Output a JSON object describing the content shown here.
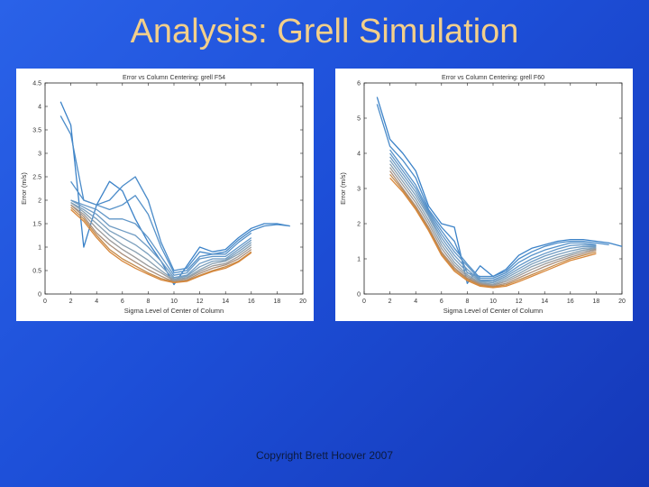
{
  "slide": {
    "title": "Analysis: Grell Simulation",
    "footer": "Copyright Brett Hoover 2007"
  },
  "chart_data": [
    {
      "type": "line",
      "title": "Error vs Column Centering: grell F54",
      "xlabel": "Sigma Level of Center of Column",
      "ylabel": "Error (m/s)",
      "xlim": [
        0,
        20
      ],
      "ylim": [
        0,
        4.5
      ],
      "xticks": [
        0,
        2,
        4,
        6,
        8,
        10,
        12,
        14,
        16,
        18,
        20
      ],
      "yticks": [
        0,
        0.5,
        1,
        1.5,
        2,
        2.5,
        3,
        3.5,
        4,
        4.5
      ],
      "grid": false,
      "series": [
        {
          "color": "#3b82c8",
          "x": [
            1.2,
            2.0,
            3.0,
            4.0,
            5.0,
            6.0,
            7.0,
            8.0,
            9.0,
            10.0,
            11.0,
            12.0,
            13.0,
            14.0,
            15.0,
            16.0,
            17.0,
            18.0,
            19.0
          ],
          "y": [
            4.1,
            3.6,
            1.0,
            1.9,
            2.4,
            2.2,
            1.6,
            1.1,
            0.7,
            0.2,
            0.6,
            1.0,
            0.9,
            0.95,
            1.2,
            1.4,
            1.5,
            1.5,
            1.45
          ]
        },
        {
          "color": "#4a8bc9",
          "x": [
            1.2,
            2.0,
            3.0,
            4.0,
            5.0,
            6.0,
            7.0,
            8.0,
            9.0,
            10.0,
            11.0,
            12.0,
            13.0,
            14.0,
            15.0,
            16.0,
            17.0,
            18.0,
            19.0
          ],
          "y": [
            3.8,
            3.4,
            2.0,
            1.9,
            2.0,
            2.3,
            2.5,
            2.0,
            1.1,
            0.5,
            0.55,
            0.9,
            0.85,
            0.9,
            1.15,
            1.35,
            1.45,
            1.48,
            1.45
          ]
        },
        {
          "color": "#5591c9",
          "x": [
            2.0,
            3.0,
            4.0,
            5.0,
            6.0,
            7.0,
            8.0,
            9.0,
            10.0,
            11.0,
            12.0,
            13.0,
            14.0,
            15.0,
            16.0
          ],
          "y": [
            2.4,
            2.0,
            1.9,
            1.8,
            1.9,
            2.1,
            1.7,
            1.0,
            0.45,
            0.5,
            0.8,
            0.85,
            0.85,
            1.1,
            1.3
          ]
        },
        {
          "color": "#6297c8",
          "x": [
            2.0,
            3.0,
            4.0,
            5.0,
            6.0,
            7.0,
            8.0,
            9.0,
            10.0,
            11.0,
            12.0,
            13.0,
            14.0,
            15.0,
            16.0
          ],
          "y": [
            2.0,
            1.9,
            1.8,
            1.6,
            1.6,
            1.5,
            1.2,
            0.8,
            0.4,
            0.45,
            0.75,
            0.8,
            0.8,
            1.0,
            1.2
          ]
        },
        {
          "color": "#6e9bc3",
          "x": [
            2.0,
            3.0,
            4.0,
            5.0,
            6.0,
            7.0,
            8.0,
            9.0,
            10.0,
            11.0,
            12.0,
            13.0,
            14.0,
            15.0,
            16.0
          ],
          "y": [
            2.0,
            1.85,
            1.7,
            1.45,
            1.35,
            1.25,
            1.0,
            0.7,
            0.35,
            0.4,
            0.65,
            0.75,
            0.75,
            0.95,
            1.15
          ]
        },
        {
          "color": "#7b9fbd",
          "x": [
            2.0,
            3.0,
            4.0,
            5.0,
            6.0,
            7.0,
            8.0,
            9.0,
            10.0,
            11.0,
            12.0,
            13.0,
            14.0,
            15.0,
            16.0
          ],
          "y": [
            1.95,
            1.8,
            1.6,
            1.35,
            1.2,
            1.05,
            0.85,
            0.6,
            0.32,
            0.38,
            0.58,
            0.7,
            0.72,
            0.9,
            1.1
          ]
        },
        {
          "color": "#889fb0",
          "x": [
            2.0,
            3.0,
            4.0,
            5.0,
            6.0,
            7.0,
            8.0,
            9.0,
            10.0,
            11.0,
            12.0,
            13.0,
            14.0,
            15.0,
            16.0
          ],
          "y": [
            1.95,
            1.75,
            1.5,
            1.25,
            1.05,
            0.9,
            0.72,
            0.5,
            0.3,
            0.35,
            0.52,
            0.65,
            0.7,
            0.85,
            1.05
          ]
        },
        {
          "color": "#9a9a9a",
          "x": [
            2.0,
            3.0,
            4.0,
            5.0,
            6.0,
            7.0,
            8.0,
            9.0,
            10.0,
            11.0,
            12.0,
            13.0,
            14.0,
            15.0,
            16.0
          ],
          "y": [
            1.9,
            1.7,
            1.4,
            1.15,
            0.95,
            0.78,
            0.6,
            0.45,
            0.28,
            0.33,
            0.48,
            0.6,
            0.65,
            0.8,
            1.0
          ]
        },
        {
          "color": "#a98f7c",
          "x": [
            2.0,
            3.0,
            4.0,
            5.0,
            6.0,
            7.0,
            8.0,
            9.0,
            10.0,
            11.0,
            12.0,
            13.0,
            14.0,
            15.0,
            16.0
          ],
          "y": [
            1.9,
            1.65,
            1.3,
            1.05,
            0.85,
            0.68,
            0.52,
            0.38,
            0.26,
            0.3,
            0.44,
            0.55,
            0.62,
            0.75,
            0.95
          ]
        },
        {
          "color": "#c48a4a",
          "x": [
            2.0,
            3.0,
            4.0,
            5.0,
            6.0,
            7.0,
            8.0,
            9.0,
            10.0,
            11.0,
            12.0,
            13.0,
            14.0,
            15.0,
            16.0
          ],
          "y": [
            1.85,
            1.6,
            1.25,
            0.95,
            0.75,
            0.6,
            0.45,
            0.33,
            0.25,
            0.28,
            0.4,
            0.5,
            0.58,
            0.7,
            0.9
          ]
        },
        {
          "color": "#d8873a",
          "x": [
            2.0,
            3.0,
            4.0,
            5.0,
            6.0,
            7.0,
            8.0,
            9.0,
            10.0,
            11.0,
            12.0,
            13.0,
            14.0,
            15.0,
            16.0
          ],
          "y": [
            1.8,
            1.55,
            1.2,
            0.9,
            0.7,
            0.55,
            0.42,
            0.3,
            0.24,
            0.27,
            0.38,
            0.48,
            0.55,
            0.68,
            0.88
          ]
        }
      ]
    },
    {
      "type": "line",
      "title": "Error vs Column Centering: grell F60",
      "xlabel": "Sigma Level of Center of Column",
      "ylabel": "Error (m/s)",
      "xlim": [
        0,
        20
      ],
      "ylim": [
        0,
        6
      ],
      "xticks": [
        0,
        2,
        4,
        6,
        8,
        10,
        12,
        14,
        16,
        18,
        20
      ],
      "yticks": [
        0,
        1,
        2,
        3,
        4,
        5,
        6
      ],
      "grid": false,
      "series": [
        {
          "color": "#3b82c8",
          "x": [
            1.0,
            2.0,
            3.0,
            4.0,
            5.0,
            6.0,
            7.0,
            8.0,
            9.0,
            10.0,
            11.0,
            12.0,
            13.0,
            14.0,
            15.0,
            16.0,
            17.0,
            18.0,
            19.0,
            20.0
          ],
          "y": [
            5.6,
            4.4,
            4.0,
            3.5,
            2.5,
            2.0,
            1.9,
            0.3,
            0.8,
            0.5,
            0.7,
            1.1,
            1.3,
            1.4,
            1.5,
            1.55,
            1.55,
            1.5,
            1.45,
            1.35
          ]
        },
        {
          "color": "#4a8bc9",
          "x": [
            1.0,
            2.0,
            3.0,
            4.0,
            5.0,
            6.0,
            7.0,
            8.0,
            9.0,
            10.0,
            11.0,
            12.0,
            13.0,
            14.0,
            15.0,
            16.0,
            17.0,
            18.0,
            19.0
          ],
          "y": [
            5.4,
            4.2,
            3.8,
            3.3,
            2.4,
            1.9,
            1.5,
            0.6,
            0.5,
            0.5,
            0.65,
            1.0,
            1.2,
            1.35,
            1.45,
            1.5,
            1.5,
            1.45,
            1.4
          ]
        },
        {
          "color": "#5591c9",
          "x": [
            2.0,
            3.0,
            4.0,
            5.0,
            6.0,
            7.0,
            8.0,
            9.0,
            10.0,
            11.0,
            12.0,
            13.0,
            14.0,
            15.0,
            16.0,
            17.0,
            18.0
          ],
          "y": [
            4.1,
            3.6,
            3.1,
            2.35,
            1.8,
            1.3,
            0.85,
            0.45,
            0.45,
            0.6,
            0.9,
            1.1,
            1.25,
            1.35,
            1.45,
            1.45,
            1.4
          ]
        },
        {
          "color": "#6297c8",
          "x": [
            2.0,
            3.0,
            4.0,
            5.0,
            6.0,
            7.0,
            8.0,
            9.0,
            10.0,
            11.0,
            12.0,
            13.0,
            14.0,
            15.0,
            16.0,
            17.0,
            18.0
          ],
          "y": [
            4.0,
            3.5,
            3.0,
            2.3,
            1.7,
            1.2,
            0.8,
            0.4,
            0.4,
            0.55,
            0.8,
            1.0,
            1.15,
            1.28,
            1.38,
            1.4,
            1.38
          ]
        },
        {
          "color": "#6e9bc3",
          "x": [
            2.0,
            3.0,
            4.0,
            5.0,
            6.0,
            7.0,
            8.0,
            9.0,
            10.0,
            11.0,
            12.0,
            13.0,
            14.0,
            15.0,
            16.0,
            17.0,
            18.0
          ],
          "y": [
            3.9,
            3.4,
            2.9,
            2.25,
            1.6,
            1.1,
            0.7,
            0.38,
            0.36,
            0.5,
            0.72,
            0.92,
            1.08,
            1.2,
            1.3,
            1.35,
            1.35
          ]
        },
        {
          "color": "#7b9fbd",
          "x": [
            2.0,
            3.0,
            4.0,
            5.0,
            6.0,
            7.0,
            8.0,
            9.0,
            10.0,
            11.0,
            12.0,
            13.0,
            14.0,
            15.0,
            16.0,
            17.0,
            18.0
          ],
          "y": [
            3.8,
            3.3,
            2.8,
            2.2,
            1.5,
            1.0,
            0.62,
            0.35,
            0.32,
            0.45,
            0.65,
            0.85,
            1.0,
            1.12,
            1.22,
            1.3,
            1.32
          ]
        },
        {
          "color": "#889fb0",
          "x": [
            2.0,
            3.0,
            4.0,
            5.0,
            6.0,
            7.0,
            8.0,
            9.0,
            10.0,
            11.0,
            12.0,
            13.0,
            14.0,
            15.0,
            16.0,
            17.0,
            18.0
          ],
          "y": [
            3.7,
            3.2,
            2.7,
            2.1,
            1.4,
            0.9,
            0.55,
            0.32,
            0.28,
            0.4,
            0.58,
            0.78,
            0.92,
            1.05,
            1.15,
            1.25,
            1.3
          ]
        },
        {
          "color": "#9a9a9a",
          "x": [
            2.0,
            3.0,
            4.0,
            5.0,
            6.0,
            7.0,
            8.0,
            9.0,
            10.0,
            11.0,
            12.0,
            13.0,
            14.0,
            15.0,
            16.0,
            17.0,
            18.0
          ],
          "y": [
            3.6,
            3.1,
            2.6,
            2.0,
            1.3,
            0.82,
            0.5,
            0.3,
            0.25,
            0.35,
            0.52,
            0.7,
            0.85,
            0.98,
            1.1,
            1.2,
            1.28
          ]
        },
        {
          "color": "#a98f7c",
          "x": [
            2.0,
            3.0,
            4.0,
            5.0,
            6.0,
            7.0,
            8.0,
            9.0,
            10.0,
            11.0,
            12.0,
            13.0,
            14.0,
            15.0,
            16.0,
            17.0,
            18.0
          ],
          "y": [
            3.5,
            3.0,
            2.5,
            1.9,
            1.2,
            0.75,
            0.45,
            0.28,
            0.22,
            0.3,
            0.46,
            0.62,
            0.78,
            0.92,
            1.05,
            1.15,
            1.25
          ]
        },
        {
          "color": "#c48a4a",
          "x": [
            2.0,
            3.0,
            4.0,
            5.0,
            6.0,
            7.0,
            8.0,
            9.0,
            10.0,
            11.0,
            12.0,
            13.0,
            14.0,
            15.0,
            16.0,
            17.0,
            18.0
          ],
          "y": [
            3.4,
            2.95,
            2.45,
            1.85,
            1.15,
            0.7,
            0.42,
            0.25,
            0.2,
            0.26,
            0.4,
            0.55,
            0.7,
            0.85,
            1.0,
            1.1,
            1.2
          ]
        },
        {
          "color": "#d8873a",
          "x": [
            2.0,
            3.0,
            4.0,
            5.0,
            6.0,
            7.0,
            8.0,
            9.0,
            10.0,
            11.0,
            12.0,
            13.0,
            14.0,
            15.0,
            16.0,
            17.0,
            18.0
          ],
          "y": [
            3.3,
            2.9,
            2.4,
            1.8,
            1.1,
            0.65,
            0.38,
            0.22,
            0.18,
            0.22,
            0.35,
            0.5,
            0.65,
            0.8,
            0.95,
            1.05,
            1.15
          ]
        }
      ]
    }
  ]
}
